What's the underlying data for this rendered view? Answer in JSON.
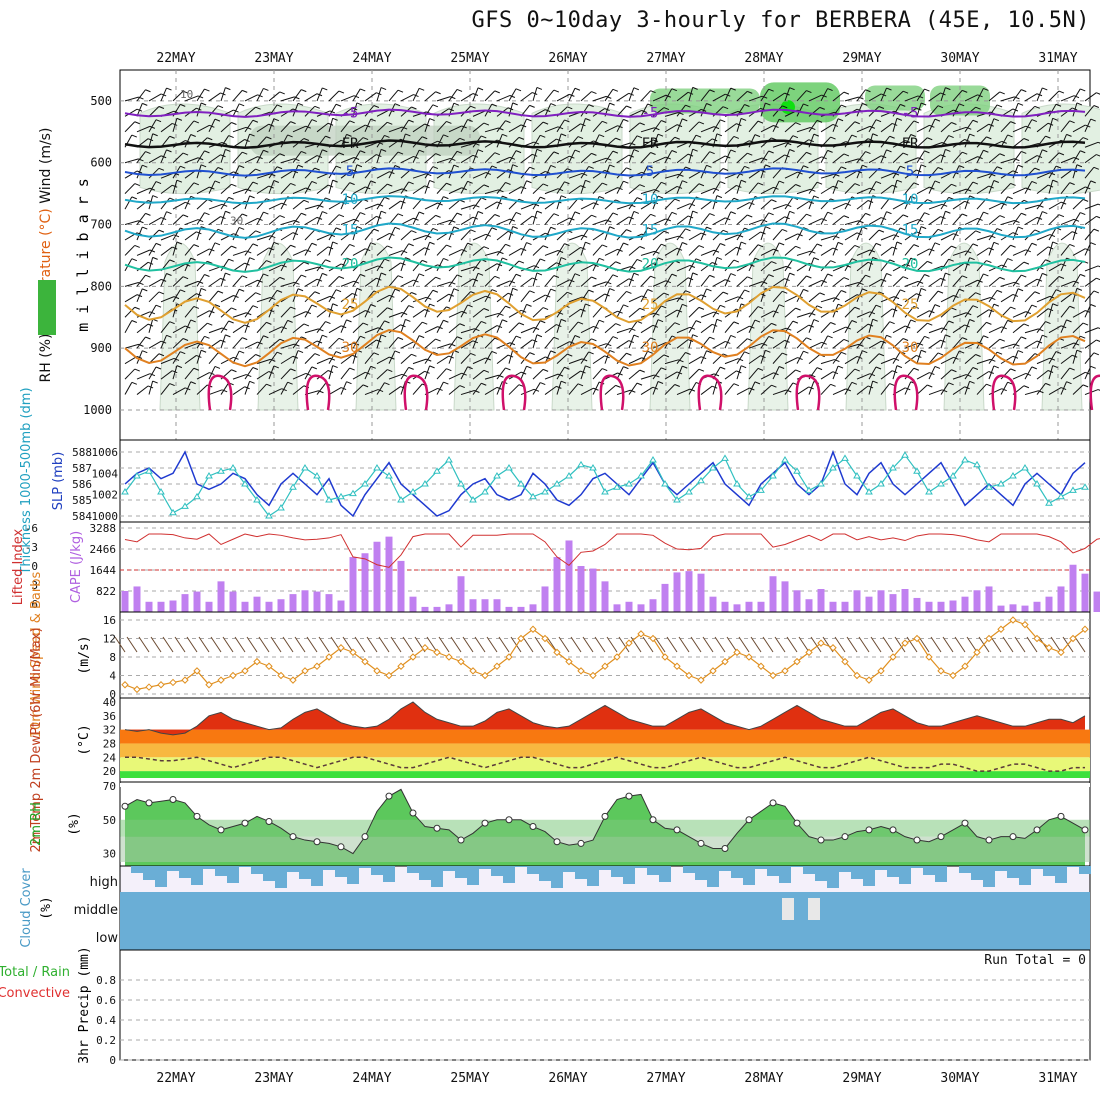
{
  "title": "GFS 0~10day 3-hourly for BERBERA (45E, 10.5N)",
  "run_total_label": "Run Total = 0",
  "colors": {
    "temp_contour_hot": "#e08020",
    "temp_contour_warm": "#e0a030",
    "temp_contour_mild": "#20c0a0",
    "temp_contour_cool": "#20a8c8",
    "temp_contour_cold": "#2050d0",
    "temp_contour_frozen": "#8020c0",
    "thermal_low": "#d0106a",
    "rh_fill": "#5cc85c",
    "slp_line": "#1f3ad0",
    "thickness_line": "#30c0c0",
    "cape_bar": "#c080f0",
    "lifted_index": "#d03030",
    "wind_speed": "#e09020",
    "temp_band_hot": "#e03010",
    "cloud_fill": "#6aaed6"
  },
  "chart_data": [
    {
      "type": "heatmap",
      "name_label": "Wind (m/s) Temperature (°C) RH (%)",
      "ylabel": "m i l l i b a r s",
      "ylabel_parts": [
        "RH (%)",
        "Temperature (°C)",
        "Wind (m/s)"
      ],
      "x_ticks": [
        "22MAY",
        "23MAY",
        "24MAY",
        "25MAY",
        "26MAY",
        "27MAY",
        "28MAY",
        "29MAY",
        "30MAY",
        "31MAY"
      ],
      "y_ticks": [
        500,
        600,
        700,
        800,
        900,
        1000
      ],
      "ylim": [
        1000,
        450
      ],
      "contours": [
        {
          "label": "-5",
          "level_mb": 520
        },
        {
          "label": "FR",
          "level_mb": 570
        },
        {
          "label": "5",
          "level_mb": 615
        },
        {
          "label": "10",
          "level_mb": 660
        },
        {
          "label": "15",
          "level_mb": 710
        },
        {
          "label": "20",
          "level_mb": 765
        },
        {
          "label": "25",
          "level_mb": 830
        },
        {
          "label": "30",
          "level_mb": 900
        }
      ],
      "rh_contour_labels": [
        "10",
        "30"
      ]
    },
    {
      "type": "line",
      "name_label": "Thickness 1000-500mb (dm) SLP (mb)",
      "ylabel_left": "Thickness 1000-500mb (dm)",
      "ylabel_right": "SLP (mb)",
      "left_ticks": [
        584,
        585,
        586,
        587,
        588
      ],
      "right_ticks": [
        1000,
        1002,
        1004,
        1006
      ],
      "series": [
        {
          "name": "SLP",
          "values": [
            1003,
            1004,
            1004.5,
            1003.5,
            1004,
            1006,
            1003,
            1002.5,
            1003,
            1004,
            1003.5,
            1002,
            1001,
            1003,
            1004,
            1003,
            1002,
            1003.5,
            1001,
            1000,
            1002,
            1003.5,
            1005,
            1003,
            1002,
            1001,
            1000,
            1000.5,
            1002,
            1003,
            1003.5,
            1002,
            1001.5,
            1002,
            1004,
            1003,
            1001.5,
            1001,
            1002,
            1003.5,
            1004,
            1003,
            1002,
            1003.5,
            1005,
            1003,
            1002,
            1003,
            1004,
            1005,
            1003,
            1002,
            1001,
            1003,
            1004,
            1005,
            1003,
            1002,
            1003,
            1006,
            1003,
            1002,
            1004,
            1005,
            1003,
            1002,
            1003,
            1004,
            1005,
            1003,
            1001,
            1002,
            1003,
            1002,
            1001,
            1003,
            1004,
            1003,
            1002,
            1004,
            1005
          ]
        },
        {
          "name": "Thickness",
          "values": [
            585.5,
            586.5,
            586.8,
            585.5,
            584.2,
            584.6,
            585.2,
            586.5,
            586.8,
            587,
            586,
            585,
            584,
            584.5,
            585.8,
            587,
            586.5,
            585,
            585.2,
            585.4,
            586,
            587,
            586.5,
            585,
            585.5,
            586,
            586.8,
            587.5,
            586,
            585,
            585.5,
            586.5,
            587,
            586,
            585.2,
            585.5,
            586,
            586.5,
            587.2,
            587,
            585.5,
            585.8,
            586,
            586.5,
            587.5,
            586,
            585,
            585.5,
            586.2,
            587,
            587.6,
            586,
            585.2,
            585.6,
            586.5,
            587.5,
            586.8,
            585.6,
            586,
            587,
            587.6,
            586.5,
            585.5,
            586,
            587,
            587.8,
            586.8,
            585.5,
            586,
            586.5,
            587.5,
            587.2,
            585.8,
            586,
            586.5,
            587,
            586,
            584.8,
            585.2,
            585.6,
            585.8
          ]
        }
      ]
    },
    {
      "type": "bar",
      "name_label": "Lifted Index CAPE (J/kg)",
      "ylabel_left": "Lifted Index",
      "ylabel_right": "CAPE (J/kg)",
      "left_ticks": [
        "-6",
        "-3",
        "0",
        "3",
        "6"
      ],
      "right_ticks": [
        822,
        1644,
        2466,
        3288
      ],
      "cape_values": [
        822,
        1000,
        400,
        400,
        450,
        700,
        800,
        400,
        1200,
        800,
        400,
        600,
        400,
        500,
        700,
        850,
        800,
        700,
        450,
        2150,
        2300,
        2750,
        2950,
        2000,
        600,
        200,
        200,
        300,
        1400,
        500,
        500,
        500,
        200,
        200,
        300,
        1000,
        2150,
        2800,
        1800,
        1700,
        1200,
        300,
        400,
        300,
        500,
        1100,
        1550,
        1600,
        1500,
        600,
        400,
        300,
        400,
        400,
        1400,
        1200,
        850,
        500,
        900,
        400,
        400,
        850,
        600,
        850,
        700,
        900,
        550,
        400,
        400,
        450,
        600,
        850,
        1000,
        250,
        300,
        250,
        400,
        600,
        1000,
        1850,
        1500,
        800,
        600,
        400,
        500
      ]
    },
    {
      "type": "line",
      "name_label": "10m Wind Speed & Barbs (m/s)",
      "ylabel": "(m/s)",
      "y_ticks": [
        0,
        4,
        8,
        12,
        16
      ],
      "ylim": [
        0,
        16
      ],
      "series": [
        {
          "name": "10m Wind Speed",
          "values": [
            2,
            1,
            1.5,
            2,
            2.5,
            3,
            5,
            2,
            3,
            4,
            5,
            7,
            6,
            4,
            3,
            5,
            6,
            8,
            10,
            9,
            7,
            5,
            4,
            6,
            8,
            10,
            9,
            8,
            7,
            5,
            4,
            6,
            8,
            12,
            14,
            12,
            9,
            7,
            5,
            4,
            6,
            8,
            11,
            13,
            12,
            8,
            6,
            4,
            3,
            5,
            7,
            9,
            8,
            6,
            4,
            5,
            7,
            9,
            11,
            10,
            7,
            4,
            3,
            5,
            8,
            11,
            12,
            8,
            5,
            4,
            6,
            9,
            12,
            14,
            16,
            15,
            12,
            10,
            9,
            12,
            14
          ]
        }
      ]
    },
    {
      "type": "area",
      "name_label": "2m Temp 2m DewPt (6hr Min/Max) (°C)",
      "ylabel": "(°C)",
      "y_ticks": [
        20,
        24,
        28,
        32,
        36,
        40
      ],
      "ylim": [
        18,
        40
      ],
      "series": [
        {
          "name": "2m Temp",
          "values": [
            32,
            31.5,
            32,
            31,
            30.5,
            31,
            33,
            36,
            37,
            35,
            34,
            33,
            32,
            32.5,
            35,
            37,
            38,
            36,
            34,
            33,
            32.5,
            33,
            35,
            38,
            40,
            37,
            35,
            34,
            33,
            33,
            34.5,
            37,
            38,
            36,
            34,
            33,
            32.5,
            33,
            35,
            37,
            39,
            37,
            35,
            34,
            33,
            33,
            35,
            37,
            38,
            36,
            34,
            33,
            32,
            33,
            35,
            37,
            39,
            37,
            35,
            34,
            33,
            33,
            35,
            37,
            38,
            36,
            34,
            33,
            33,
            34,
            35,
            36,
            35,
            34,
            33,
            33,
            34,
            35,
            35,
            34,
            36
          ]
        },
        {
          "name": "2m DewPt",
          "values": [
            24,
            24,
            23.5,
            23,
            23,
            23.5,
            24,
            23,
            22,
            21,
            22,
            23,
            24,
            24,
            23,
            22,
            21,
            22,
            23,
            24,
            24,
            23,
            22,
            21,
            21,
            22,
            23,
            24,
            23,
            22,
            21,
            22,
            23,
            24,
            24,
            23,
            22,
            21,
            21,
            22,
            23,
            24,
            23,
            22,
            21,
            21,
            22,
            23,
            24,
            23,
            22,
            21,
            21,
            22,
            23,
            24,
            23,
            22,
            21,
            21,
            22,
            23,
            24,
            23,
            22,
            21,
            21,
            21,
            22,
            22,
            21,
            20,
            20,
            21,
            22,
            22,
            21,
            20,
            20,
            21,
            21
          ]
        }
      ]
    },
    {
      "type": "area",
      "name_label": "2m RH (%)",
      "ylabel": "(%)",
      "y_ticks": [
        30,
        50,
        70
      ],
      "ylim": [
        25,
        70
      ],
      "series": [
        {
          "name": "2m RH",
          "values": [
            58,
            62,
            60,
            61,
            62,
            60,
            52,
            47,
            44,
            46,
            48,
            52,
            49,
            45,
            40,
            38,
            37,
            36,
            34,
            30,
            40,
            55,
            64,
            68,
            54,
            46,
            45,
            44,
            38,
            42,
            48,
            50,
            50,
            50,
            46,
            43,
            37,
            35,
            36,
            38,
            52,
            62,
            64,
            65,
            50,
            45,
            44,
            40,
            36,
            33,
            33,
            42,
            50,
            55,
            60,
            58,
            48,
            40,
            38,
            38,
            40,
            43,
            44,
            46,
            44,
            40,
            38,
            37,
            40,
            44,
            48,
            40,
            38,
            40,
            40,
            39,
            44,
            50,
            52,
            48,
            44
          ]
        }
      ]
    },
    {
      "type": "bar",
      "name_label": "Cloud Cover (%)",
      "ylabel": "(%)",
      "levels": [
        "high",
        "middle",
        "low"
      ]
    },
    {
      "type": "bar",
      "name_label": "3hr Precip (mm) Total / Rain Convective",
      "ylabel_parts": [
        "3hr Precip (mm)",
        "Total / Rain",
        "Convective"
      ],
      "y_ticks": [
        "0",
        "0.2",
        "0.4",
        "0.6",
        "0.8"
      ],
      "ylim": [
        0,
        1
      ],
      "values": []
    }
  ]
}
